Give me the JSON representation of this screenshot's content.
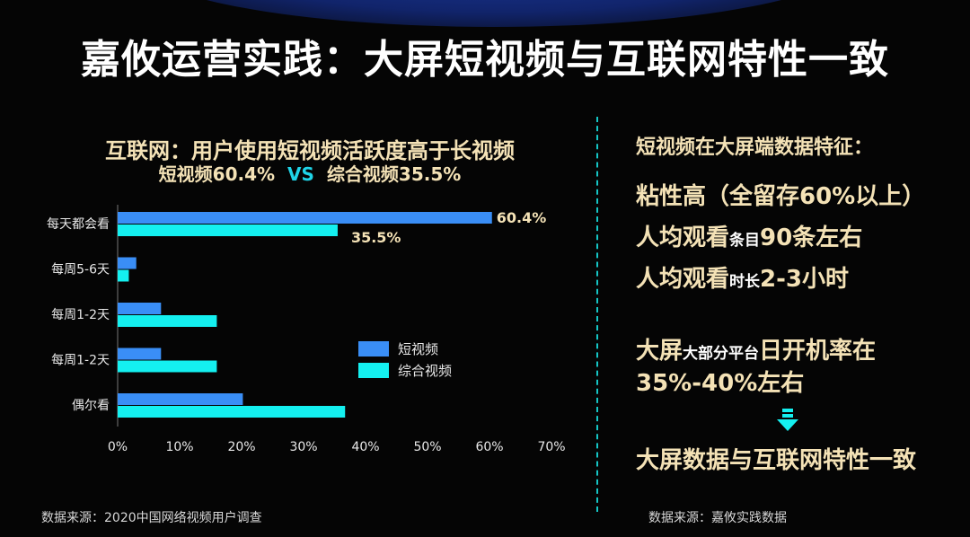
{
  "title": "嘉攸运营实践：大屏短视频与互联网特性一致",
  "chart_head": {
    "line1": "互联网：用户使用短视频活跃度高于长视频",
    "line2_left": "短视频60.4%",
    "vs": "VS",
    "line2_right": "综合视频35.5%"
  },
  "chart_data": {
    "type": "bar",
    "orientation": "horizontal",
    "categories": [
      "每天都会看",
      "每周5-6天",
      "每周1-2天",
      "每周1-2天",
      "偶尔看"
    ],
    "series": [
      {
        "name": "短视频",
        "values": [
          60.4,
          3,
          7,
          7,
          20.2
        ],
        "color": "#3a8ef6"
      },
      {
        "name": "综合视频",
        "values": [
          35.5,
          1.8,
          16,
          16,
          36.7
        ],
        "color": "#14f0f0"
      }
    ],
    "data_labels": [
      "60.4%",
      "35.5%"
    ],
    "x_ticks": [
      "0%",
      "10%",
      "20%",
      "30%",
      "40%",
      "50%",
      "60%",
      "70%"
    ],
    "xlim": [
      0,
      70
    ],
    "legend_position": "right-center",
    "grid": false
  },
  "right": {
    "heading": "短视频在大屏端数据特征：",
    "l1": "粘性高（全留存60%以上）",
    "l2a": "人均观看",
    "l2b": "条目",
    "l2c": "90条左右",
    "l3a": "人均观看",
    "l3b": "时长",
    "l3c": "2-3小时",
    "l4a": "大屏",
    "l4b": "大部分平台",
    "l4c": "日开机率在",
    "l5": "35%-40%左右",
    "conclusion": "大屏数据与互联网特性一致"
  },
  "sources": {
    "left": "数据来源：2020中国网络视频用户调查",
    "right": "数据来源：嘉攸实践数据"
  }
}
